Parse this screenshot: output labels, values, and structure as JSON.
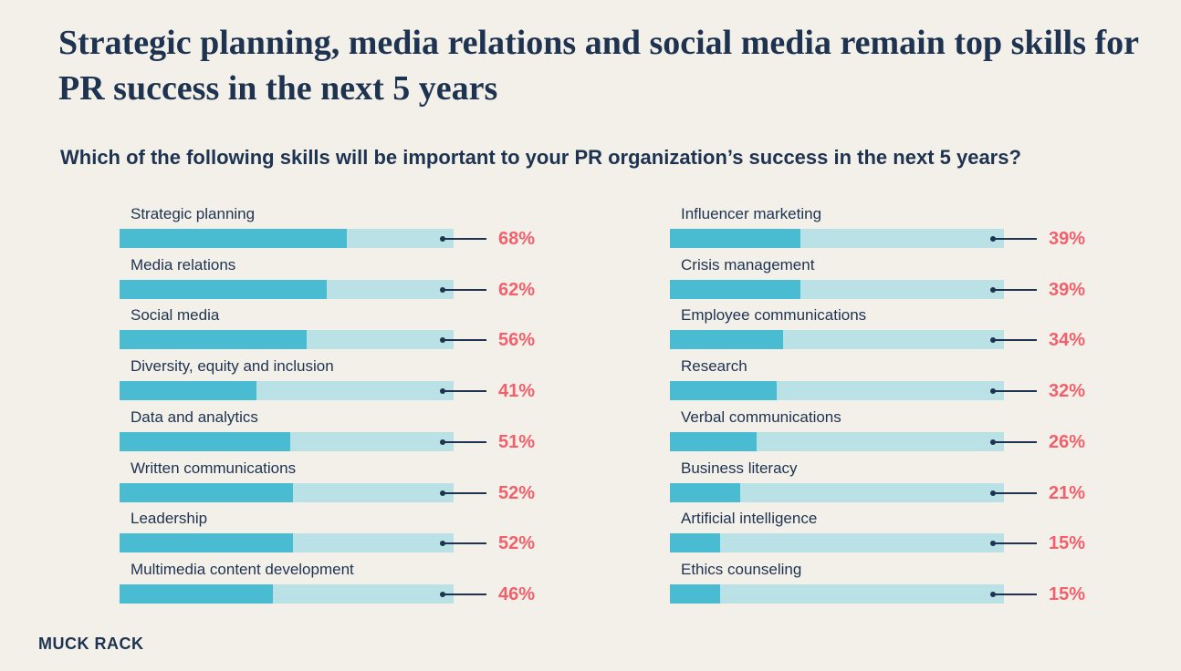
{
  "chart_data": {
    "type": "bar",
    "orientation": "horizontal",
    "title": "Strategic planning, media relations and social media remain top skills for PR success in the next 5 years",
    "subtitle": "Which of the following skills will be important to your PR organization’s success in the next 5 years?",
    "unit": "%",
    "xlim": [
      0,
      100
    ],
    "grid": false,
    "legend": "none",
    "colors": {
      "fill": "#49bcd2",
      "track": "#b9e1e6",
      "value_text": "#f2606b",
      "text": "#1e3350",
      "background": "#f3f0ea"
    },
    "columns": [
      {
        "categories": [
          "Strategic planning",
          "Media relations",
          "Social media",
          "Diversity, equity and inclusion",
          "Data and analytics",
          "Written communications",
          "Leadership",
          "Multimedia content development"
        ],
        "values": [
          68,
          62,
          56,
          41,
          51,
          52,
          52,
          46
        ],
        "labels": [
          "68%",
          "62%",
          "56%",
          "41%",
          "51%",
          "52%",
          "52%",
          "46%"
        ]
      },
      {
        "categories": [
          "Influencer marketing",
          "Crisis management",
          "Employee communications",
          "Research",
          "Verbal communications",
          "Business literacy",
          "Artificial intelligence",
          "Ethics counseling"
        ],
        "values": [
          39,
          39,
          34,
          32,
          26,
          21,
          15,
          15
        ],
        "labels": [
          "39%",
          "39%",
          "34%",
          "32%",
          "26%",
          "21%",
          "15%",
          "15%"
        ]
      }
    ]
  },
  "brand": "MUCK RACK"
}
